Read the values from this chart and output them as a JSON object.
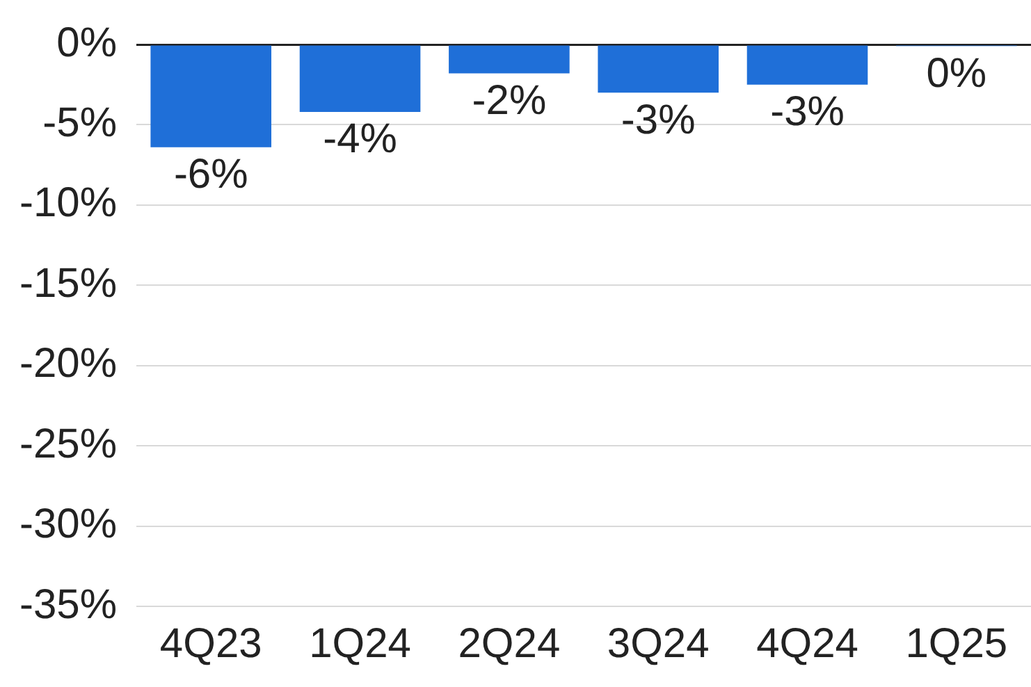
{
  "chart_data": {
    "type": "bar",
    "categories": [
      "4Q23",
      "1Q24",
      "2Q24",
      "3Q24",
      "4Q24",
      "1Q25"
    ],
    "values": [
      -6.4,
      -4.2,
      -1.8,
      -3.0,
      -2.5,
      -0.1
    ],
    "value_labels": [
      "-6%",
      "-4%",
      "-2%",
      "-3%",
      "-3%",
      "0%"
    ],
    "color": "#1f6fd8",
    "ylim": [
      -35,
      0
    ],
    "yticks": [
      {
        "value": 0,
        "label": "0%"
      },
      {
        "value": -5,
        "label": "-5%"
      },
      {
        "value": -10,
        "label": "-10%"
      },
      {
        "value": -15,
        "label": "-15%"
      },
      {
        "value": -20,
        "label": "-20%"
      },
      {
        "value": -25,
        "label": "-25%"
      },
      {
        "value": -30,
        "label": "-30%"
      },
      {
        "value": -35,
        "label": "-35%"
      }
    ],
    "grid": "y",
    "legend": false
  }
}
